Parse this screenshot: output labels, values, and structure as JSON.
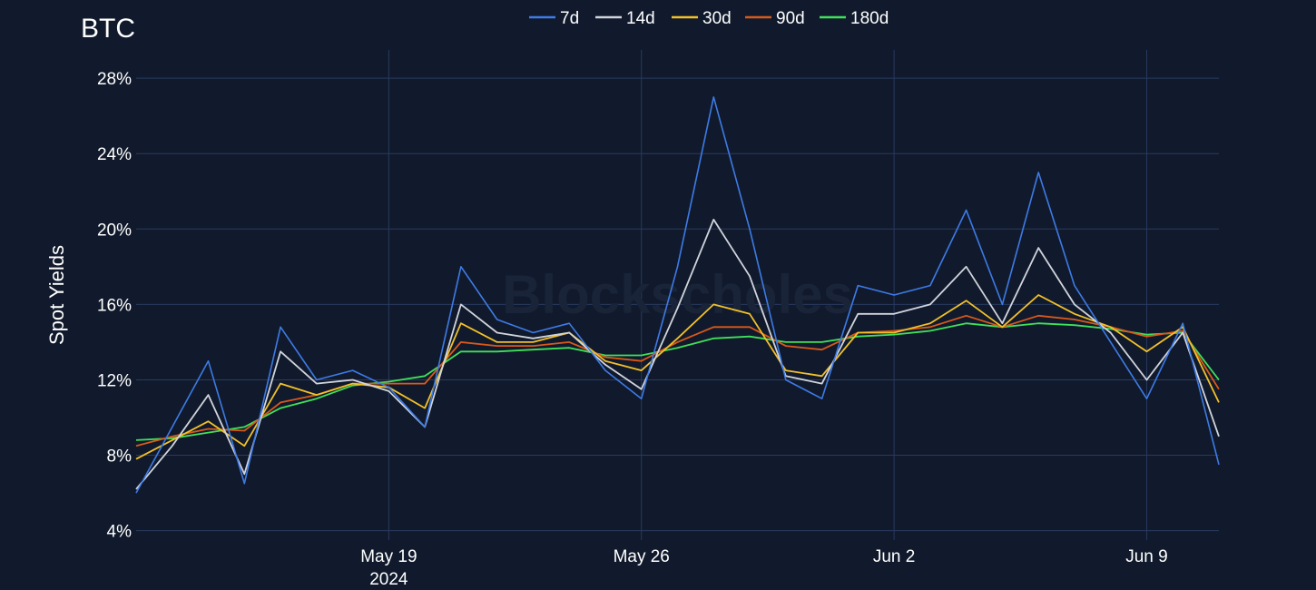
{
  "chart_data": {
    "type": "line",
    "title": "BTC",
    "ylabel": "Spot Yields",
    "xlabel": "",
    "ylim": [
      0.035,
      0.295
    ],
    "xlim": [
      "2024-05-12",
      "2024-06-11"
    ],
    "y_ticks": [
      "4%",
      "8%",
      "12%",
      "16%",
      "20%",
      "24%",
      "28%"
    ],
    "y_tick_values": [
      0.04,
      0.08,
      0.12,
      0.16,
      0.2,
      0.24,
      0.28
    ],
    "x_ticks": [
      {
        "date": "2024-05-19",
        "label": "May 19",
        "sublabel": "2024"
      },
      {
        "date": "2024-05-26",
        "label": "May 26",
        "sublabel": ""
      },
      {
        "date": "2024-06-02",
        "label": "Jun 2",
        "sublabel": ""
      },
      {
        "date": "2024-06-09",
        "label": "Jun 9",
        "sublabel": ""
      }
    ],
    "grid": true,
    "legend_position": "top-center",
    "watermark": "Blockscholes",
    "series": [
      {
        "name": "7d",
        "color": "#3d7be6",
        "x": [
          "2024-05-12",
          "2024-05-13",
          "2024-05-14",
          "2024-05-15",
          "2024-05-16",
          "2024-05-17",
          "2024-05-18",
          "2024-05-19",
          "2024-05-20",
          "2024-05-21",
          "2024-05-22",
          "2024-05-23",
          "2024-05-24",
          "2024-05-25",
          "2024-05-26",
          "2024-05-27",
          "2024-05-28",
          "2024-05-29",
          "2024-05-30",
          "2024-05-31",
          "2024-06-01",
          "2024-06-02",
          "2024-06-03",
          "2024-06-04",
          "2024-06-05",
          "2024-06-06",
          "2024-06-07",
          "2024-06-08",
          "2024-06-09",
          "2024-06-10",
          "2024-06-11"
        ],
        "y": [
          0.06,
          0.095,
          0.13,
          0.065,
          0.148,
          0.12,
          0.125,
          0.116,
          0.095,
          0.18,
          0.152,
          0.145,
          0.15,
          0.125,
          0.11,
          0.18,
          0.27,
          0.2,
          0.12,
          0.11,
          0.17,
          0.165,
          0.17,
          0.21,
          0.16,
          0.23,
          0.17,
          0.14,
          0.11,
          0.15,
          0.075
        ]
      },
      {
        "name": "14d",
        "color": "#d0d4dc",
        "x": [
          "2024-05-12",
          "2024-05-13",
          "2024-05-14",
          "2024-05-15",
          "2024-05-16",
          "2024-05-17",
          "2024-05-18",
          "2024-05-19",
          "2024-05-20",
          "2024-05-21",
          "2024-05-22",
          "2024-05-23",
          "2024-05-24",
          "2024-05-25",
          "2024-05-26",
          "2024-05-27",
          "2024-05-28",
          "2024-05-29",
          "2024-05-30",
          "2024-05-31",
          "2024-06-01",
          "2024-06-02",
          "2024-06-03",
          "2024-06-04",
          "2024-06-05",
          "2024-06-06",
          "2024-06-07",
          "2024-06-08",
          "2024-06-09",
          "2024-06-10",
          "2024-06-11"
        ],
        "y": [
          0.062,
          0.085,
          0.112,
          0.07,
          0.135,
          0.118,
          0.12,
          0.114,
          0.095,
          0.16,
          0.145,
          0.142,
          0.145,
          0.128,
          0.115,
          0.158,
          0.205,
          0.175,
          0.122,
          0.118,
          0.155,
          0.155,
          0.16,
          0.18,
          0.15,
          0.19,
          0.16,
          0.145,
          0.12,
          0.145,
          0.09
        ]
      },
      {
        "name": "30d",
        "color": "#f2c029",
        "x": [
          "2024-05-12",
          "2024-05-13",
          "2024-05-14",
          "2024-05-15",
          "2024-05-16",
          "2024-05-17",
          "2024-05-18",
          "2024-05-19",
          "2024-05-20",
          "2024-05-21",
          "2024-05-22",
          "2024-05-23",
          "2024-05-24",
          "2024-05-25",
          "2024-05-26",
          "2024-05-27",
          "2024-05-28",
          "2024-05-29",
          "2024-05-30",
          "2024-05-31",
          "2024-06-01",
          "2024-06-02",
          "2024-06-03",
          "2024-06-04",
          "2024-06-05",
          "2024-06-06",
          "2024-06-07",
          "2024-06-08",
          "2024-06-09",
          "2024-06-10",
          "2024-06-11"
        ],
        "y": [
          0.078,
          0.088,
          0.098,
          0.085,
          0.118,
          0.112,
          0.118,
          0.116,
          0.105,
          0.15,
          0.14,
          0.14,
          0.145,
          0.13,
          0.125,
          0.142,
          0.16,
          0.155,
          0.125,
          0.122,
          0.145,
          0.145,
          0.15,
          0.162,
          0.148,
          0.165,
          0.155,
          0.148,
          0.135,
          0.148,
          0.108
        ]
      },
      {
        "name": "90d",
        "color": "#d9591a",
        "x": [
          "2024-05-12",
          "2024-05-13",
          "2024-05-14",
          "2024-05-15",
          "2024-05-16",
          "2024-05-17",
          "2024-05-18",
          "2024-05-19",
          "2024-05-20",
          "2024-05-21",
          "2024-05-22",
          "2024-05-23",
          "2024-05-24",
          "2024-05-25",
          "2024-05-26",
          "2024-05-27",
          "2024-05-28",
          "2024-05-29",
          "2024-05-30",
          "2024-05-31",
          "2024-06-01",
          "2024-06-02",
          "2024-06-03",
          "2024-06-04",
          "2024-06-05",
          "2024-06-06",
          "2024-06-07",
          "2024-06-08",
          "2024-06-09",
          "2024-06-10",
          "2024-06-11"
        ],
        "y": [
          0.085,
          0.09,
          0.094,
          0.093,
          0.108,
          0.112,
          0.118,
          0.118,
          0.118,
          0.14,
          0.138,
          0.138,
          0.14,
          0.132,
          0.13,
          0.14,
          0.148,
          0.148,
          0.138,
          0.136,
          0.145,
          0.146,
          0.148,
          0.154,
          0.148,
          0.154,
          0.152,
          0.148,
          0.143,
          0.146,
          0.115
        ]
      },
      {
        "name": "180d",
        "color": "#3fe05a",
        "x": [
          "2024-05-12",
          "2024-05-13",
          "2024-05-14",
          "2024-05-15",
          "2024-05-16",
          "2024-05-17",
          "2024-05-18",
          "2024-05-19",
          "2024-05-20",
          "2024-05-21",
          "2024-05-22",
          "2024-05-23",
          "2024-05-24",
          "2024-05-25",
          "2024-05-26",
          "2024-05-27",
          "2024-05-28",
          "2024-05-29",
          "2024-05-30",
          "2024-05-31",
          "2024-06-01",
          "2024-06-02",
          "2024-06-03",
          "2024-06-04",
          "2024-06-05",
          "2024-06-06",
          "2024-06-07",
          "2024-06-08",
          "2024-06-09",
          "2024-06-10",
          "2024-06-11"
        ],
        "y": [
          0.088,
          0.089,
          0.092,
          0.095,
          0.105,
          0.11,
          0.117,
          0.119,
          0.122,
          0.135,
          0.135,
          0.136,
          0.137,
          0.133,
          0.133,
          0.137,
          0.142,
          0.143,
          0.14,
          0.14,
          0.143,
          0.144,
          0.146,
          0.15,
          0.148,
          0.15,
          0.149,
          0.147,
          0.144,
          0.145,
          0.12
        ]
      }
    ]
  }
}
